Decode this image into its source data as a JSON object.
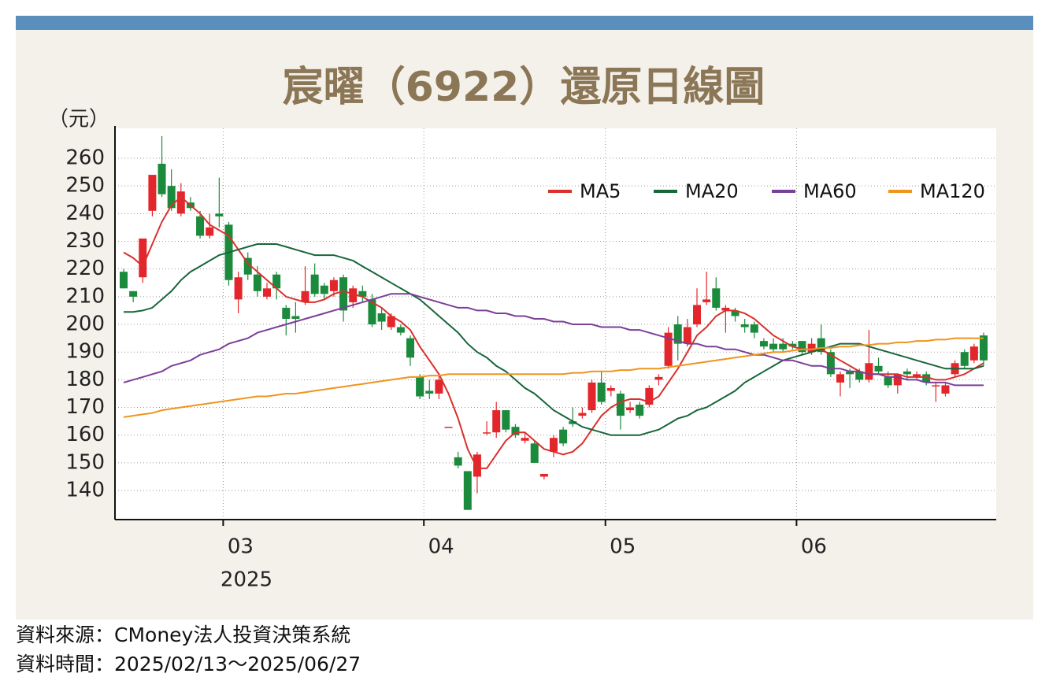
{
  "chart_data": {
    "type": "candlestick",
    "title": "宸曜（6922）還原日線圖",
    "y_unit": "（元）",
    "x_sublabel": "2025",
    "categories": [
      null,
      null,
      null,
      null,
      null,
      null,
      null,
      null,
      null,
      null,
      null,
      "03",
      null,
      null,
      null,
      null,
      null,
      null,
      null,
      null,
      null,
      null,
      null,
      null,
      null,
      null,
      null,
      null,
      null,
      null,
      null,
      null,
      "04",
      null,
      null,
      null,
      null,
      null,
      null,
      null,
      null,
      null,
      null,
      null,
      null,
      null,
      null,
      null,
      null,
      null,
      null,
      "05",
      null,
      null,
      null,
      null,
      null,
      null,
      null,
      null,
      null,
      null,
      null,
      null,
      null,
      null,
      null,
      null,
      null,
      null,
      null,
      "06",
      null,
      null,
      null,
      null,
      null,
      null,
      null,
      null,
      null,
      null,
      null,
      null,
      null,
      null,
      null,
      null,
      null,
      null,
      null
    ],
    "open": [
      219,
      212,
      217,
      241,
      258,
      250,
      240,
      244,
      239,
      232,
      240,
      236,
      209,
      224,
      218,
      210,
      218,
      206,
      203,
      208,
      218,
      214,
      212,
      217,
      208,
      212,
      209,
      204,
      199,
      199,
      195,
      181,
      176,
      175,
      163,
      152,
      147,
      145,
      161,
      161,
      169,
      163,
      158,
      157,
      145,
      154,
      162,
      165,
      167,
      169,
      179,
      176,
      175,
      169,
      171,
      171,
      180,
      185,
      200,
      193,
      200,
      208,
      213,
      205,
      205,
      200,
      200,
      194,
      193,
      193,
      193,
      194,
      190,
      195,
      190,
      179,
      183,
      183,
      180,
      185,
      181,
      178,
      183,
      181,
      182,
      178,
      175,
      182,
      190,
      187,
      196
    ],
    "high": [
      220,
      212,
      231,
      254,
      268,
      256,
      251,
      246,
      241,
      240,
      253,
      237,
      219,
      226,
      221,
      215,
      219,
      207,
      208,
      221,
      222,
      215,
      217,
      218,
      214,
      214,
      211,
      206,
      204,
      200,
      196,
      182,
      180,
      182,
      163,
      154,
      147,
      154,
      165,
      172,
      169,
      164,
      161,
      158,
      146,
      160,
      163,
      170,
      170,
      180,
      183,
      178,
      176,
      172,
      172,
      178,
      182,
      199,
      203,
      202,
      213,
      219,
      217,
      207,
      206,
      202,
      201,
      195,
      195,
      195,
      194,
      194,
      195,
      200,
      191,
      183,
      184,
      184,
      198,
      188,
      183,
      182,
      184,
      183,
      183,
      179,
      179,
      187,
      191,
      193,
      197
    ],
    "low": [
      213,
      208,
      215,
      239,
      246,
      241,
      239,
      241,
      231,
      231,
      235,
      214,
      204,
      216,
      210,
      209,
      209,
      196,
      197,
      207,
      210,
      209,
      210,
      201,
      206,
      208,
      199,
      198,
      198,
      196,
      185,
      173,
      173,
      173,
      163,
      148,
      133,
      139,
      160,
      159,
      161,
      159,
      157,
      150,
      144,
      152,
      156,
      163,
      166,
      168,
      171,
      174,
      162,
      168,
      166,
      170,
      178,
      184,
      187,
      192,
      199,
      207,
      205,
      197,
      201,
      197,
      195,
      191,
      190,
      190,
      191,
      189,
      189,
      189,
      181,
      174,
      177,
      179,
      179,
      182,
      177,
      175,
      180,
      180,
      178,
      172,
      174,
      181,
      184,
      186,
      185
    ],
    "close": [
      213,
      210,
      231,
      254,
      247,
      242,
      248,
      242,
      232,
      235,
      239,
      216,
      217,
      218,
      212,
      213,
      213,
      202,
      202,
      212,
      211,
      211,
      216,
      205,
      213,
      210,
      200,
      201,
      203,
      197,
      188,
      174,
      175,
      180,
      163,
      149,
      133,
      153,
      161,
      169,
      162,
      160,
      159,
      150,
      146,
      159,
      157,
      164,
      168,
      179,
      172,
      177,
      167,
      170,
      167,
      177,
      181,
      197,
      193,
      199,
      207,
      209,
      206,
      206,
      203,
      199,
      197,
      192,
      191,
      191,
      192,
      190,
      193,
      190,
      182,
      182,
      182,
      180,
      186,
      183,
      178,
      182,
      182,
      182,
      179,
      178,
      178,
      186,
      185,
      192,
      187
    ],
    "up_color": "#e3262b",
    "down_color": "#1b8a3c",
    "series": [
      {
        "name": "MA5",
        "color": "#d9302b",
        "values": [
          226,
          224,
          221,
          229,
          237,
          243,
          246,
          243,
          240,
          236,
          234,
          232,
          227,
          222,
          219,
          216,
          213,
          210,
          209,
          208,
          208,
          209,
          211,
          212,
          211,
          210,
          208,
          206,
          203,
          201,
          198,
          192,
          187,
          182,
          175,
          166,
          155,
          148,
          148,
          153,
          158,
          161,
          161,
          158,
          155,
          154,
          153,
          154,
          157,
          162,
          167,
          170,
          172,
          173,
          173,
          172,
          174,
          179,
          184,
          190,
          196,
          199,
          203,
          205,
          205,
          204,
          202,
          199,
          196,
          194,
          192,
          191,
          191,
          191,
          189,
          187,
          185,
          183,
          182,
          182,
          182,
          182,
          181,
          181,
          181,
          180,
          180,
          181,
          182,
          184,
          186
        ]
      },
      {
        "name": "MA20",
        "color": "#17663a",
        "values": [
          204.5,
          204.5,
          205,
          206,
          209,
          212,
          216,
          219,
          221,
          223,
          225,
          226,
          227,
          228,
          229,
          229,
          229,
          228,
          227,
          226,
          225,
          225,
          225,
          224,
          223,
          221,
          219,
          217,
          215,
          213,
          211,
          209,
          206,
          203,
          200,
          197,
          193,
          190,
          188,
          185,
          183,
          180,
          177,
          175,
          172,
          169,
          167,
          165,
          163,
          162,
          161,
          160,
          160,
          160,
          160,
          161,
          162,
          164,
          166,
          167,
          169,
          170,
          172,
          174,
          176,
          179,
          181,
          183,
          185,
          187,
          188,
          189,
          190,
          191,
          192,
          193,
          193,
          193,
          192,
          191,
          190,
          189,
          188,
          187,
          186,
          185,
          184,
          184,
          184,
          184,
          185
        ]
      },
      {
        "name": "MA60",
        "color": "#7b3f98",
        "values": [
          179,
          180,
          181,
          182,
          183,
          185,
          186,
          187,
          189,
          190,
          191,
          193,
          194,
          195,
          197,
          198,
          199,
          200,
          201,
          202,
          203,
          204,
          205,
          206,
          207,
          208,
          209,
          210,
          211,
          211,
          211,
          210,
          209,
          208,
          207,
          206,
          206,
          205,
          205,
          204,
          204,
          203,
          203,
          202,
          202,
          201,
          201,
          200,
          200,
          200,
          199,
          199,
          199,
          198,
          198,
          197,
          196,
          195,
          194,
          193,
          193,
          192,
          192,
          191,
          191,
          190,
          189,
          189,
          188,
          187,
          187,
          186,
          185,
          185,
          184,
          184,
          183,
          183,
          182,
          182,
          181,
          181,
          180,
          180,
          179,
          179,
          179,
          178,
          178,
          178,
          178
        ]
      },
      {
        "name": "MA120",
        "color": "#f0941e",
        "values": [
          166.5,
          167,
          167.5,
          168,
          169,
          169.5,
          170,
          170.5,
          171,
          171.5,
          172,
          172.5,
          173,
          173.5,
          174,
          174,
          174.5,
          175,
          175,
          175.5,
          176,
          176.5,
          177,
          177.5,
          178,
          178.5,
          179,
          179.5,
          180,
          180.5,
          181,
          181,
          181.5,
          181.5,
          182,
          182,
          182,
          182,
          182,
          182,
          182,
          182,
          182,
          182,
          182,
          182,
          182,
          182.5,
          182.5,
          183,
          183,
          183,
          183.5,
          183.5,
          184,
          184,
          184,
          184.5,
          185,
          185.5,
          186,
          186.5,
          187,
          187.5,
          188,
          188.5,
          189,
          189.5,
          190,
          190,
          190.5,
          191,
          191,
          191.5,
          191.5,
          192,
          192,
          192.5,
          192.5,
          193,
          193,
          193.5,
          193.5,
          194,
          194,
          194.5,
          194.5,
          195,
          195,
          195,
          195
        ]
      }
    ],
    "ylim": [
      129.5,
      270.8
    ],
    "yticks": [
      140,
      150,
      160,
      170,
      180,
      190,
      200,
      210,
      220,
      230,
      240,
      250,
      260
    ],
    "grid": true,
    "legend": "top-right"
  },
  "footer": [
    "資料來源：CMoney法人投資決策系統",
    "資料時間：2025/02/13～2025/06/27"
  ]
}
